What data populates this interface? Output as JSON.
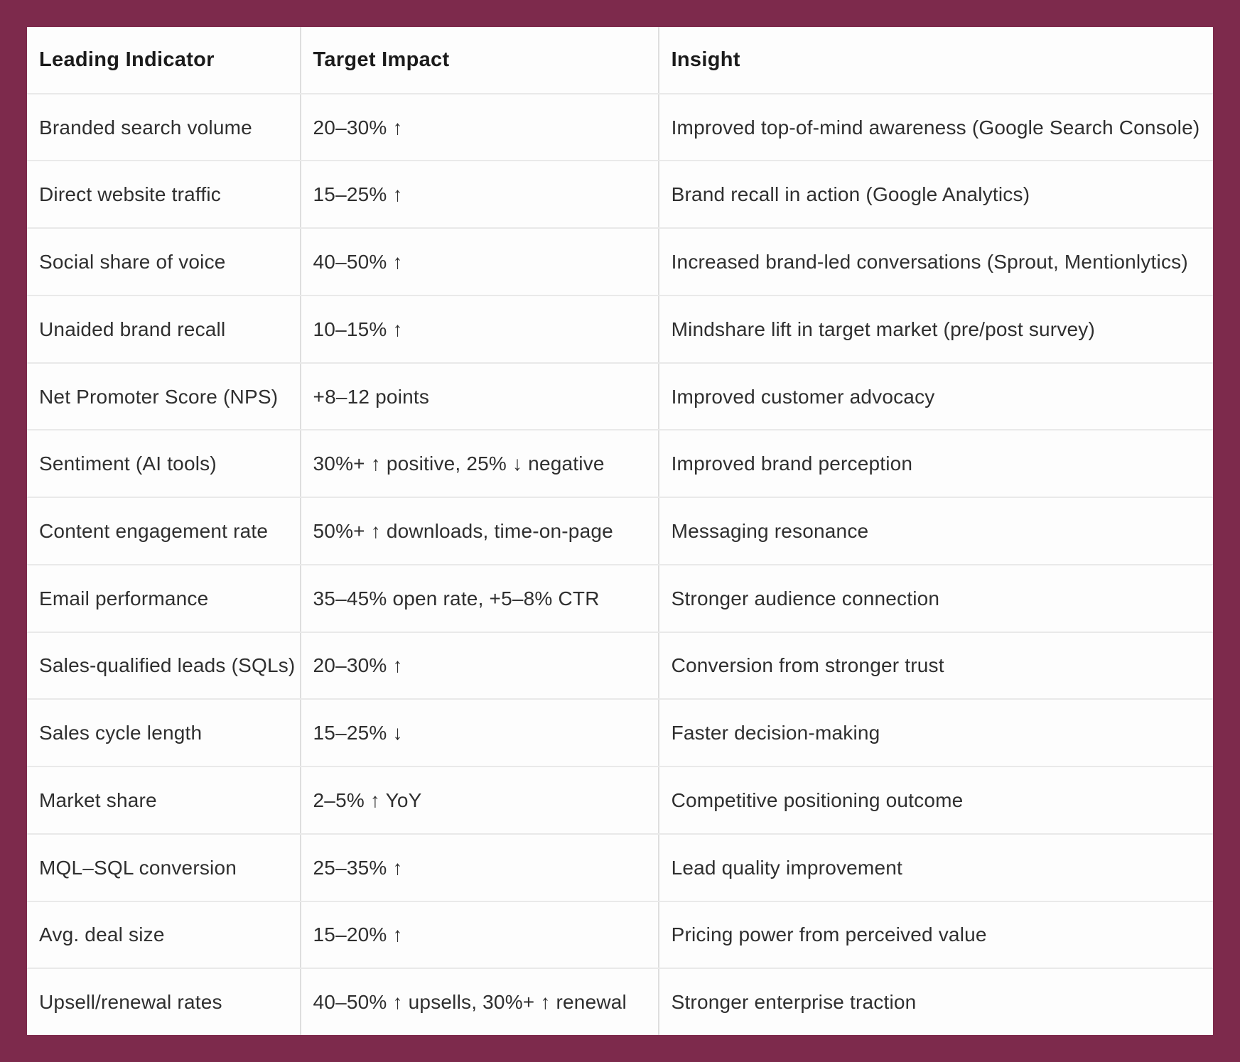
{
  "colors": {
    "background": "#7D2A4C",
    "card": "#FDFDFD",
    "grid_vertical": "#DEDEDE",
    "grid_horizontal": "#E9E9E9",
    "header_text": "#1B1B1B",
    "body_text": "#2F2F2F"
  },
  "table": {
    "headers": [
      "Leading Indicator",
      "Target Impact",
      "Insight"
    ],
    "rows": [
      {
        "indicator": "Branded search volume",
        "impact": "20–30% ↑",
        "insight": "Improved top-of-mind awareness (Google Search Console)"
      },
      {
        "indicator": "Direct website traffic",
        "impact": "15–25% ↑",
        "insight": "Brand recall in action (Google Analytics)"
      },
      {
        "indicator": "Social share of voice",
        "impact": "40–50% ↑",
        "insight": "Increased brand-led conversations (Sprout, Mentionlytics)"
      },
      {
        "indicator": "Unaided brand recall",
        "impact": "10–15% ↑",
        "insight": "Mindshare lift in target market (pre/post survey)"
      },
      {
        "indicator": "Net Promoter Score (NPS)",
        "impact": "+8–12 points",
        "insight": "Improved customer advocacy"
      },
      {
        "indicator": "Sentiment (AI tools)",
        "impact": "30%+ ↑ positive, 25% ↓ negative",
        "insight": "Improved brand perception"
      },
      {
        "indicator": "Content engagement rate",
        "impact": "50%+ ↑ downloads, time-on-page",
        "insight": "Messaging resonance"
      },
      {
        "indicator": "Email performance",
        "impact": "35–45% open rate, +5–8% CTR",
        "insight": "Stronger audience connection"
      },
      {
        "indicator": "Sales-qualified leads (SQLs)",
        "impact": "20–30% ↑",
        "insight": "Conversion from stronger trust"
      },
      {
        "indicator": "Sales cycle length",
        "impact": "15–25% ↓",
        "insight": "Faster decision-making"
      },
      {
        "indicator": "Market share",
        "impact": "2–5% ↑ YoY",
        "insight": "Competitive positioning outcome"
      },
      {
        "indicator": "MQL–SQL conversion",
        "impact": "25–35% ↑",
        "insight": "Lead quality improvement"
      },
      {
        "indicator": "Avg. deal size",
        "impact": "15–20% ↑",
        "insight": "Pricing power from perceived value"
      },
      {
        "indicator": "Upsell/renewal rates",
        "impact": "40–50% ↑ upsells, 30%+ ↑ renewal",
        "insight": "Stronger enterprise traction"
      }
    ]
  }
}
